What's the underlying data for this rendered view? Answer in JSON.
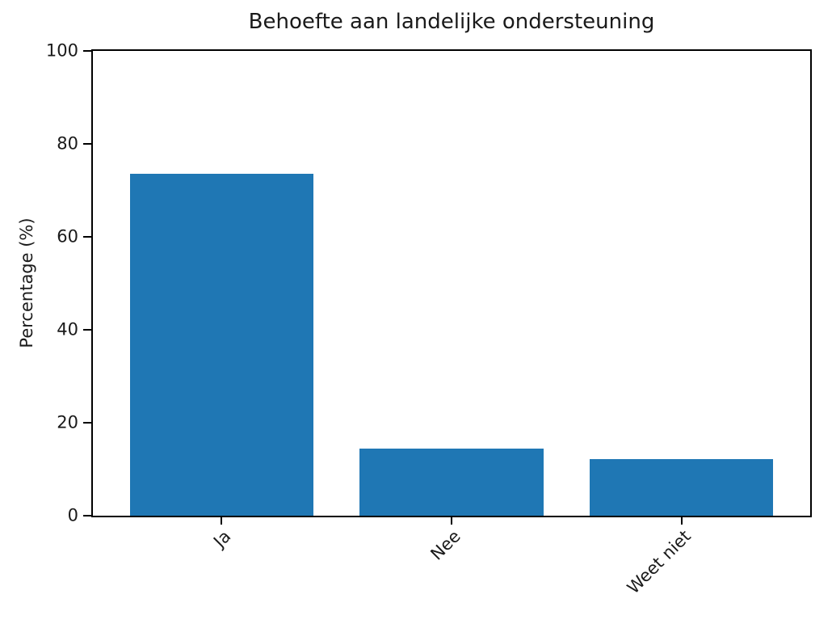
{
  "chart_data": {
    "type": "bar",
    "title": "Behoefte aan landelijke ondersteuning",
    "categories": [
      "Ja",
      "Nee",
      "Weet niet"
    ],
    "values": [
      73.5,
      14.5,
      12.1
    ],
    "xlabel": "",
    "ylabel": "Percentage (%)",
    "ylim": [
      0,
      100
    ],
    "yticks": [
      0,
      20,
      40,
      60,
      80,
      100
    ],
    "x_tick_rotation_deg": 45,
    "grid": false,
    "legend": false,
    "bar_color": "#1f77b4",
    "axis_color": "#000000",
    "text_color": "#1a1a1a",
    "background_color": "#ffffff"
  }
}
